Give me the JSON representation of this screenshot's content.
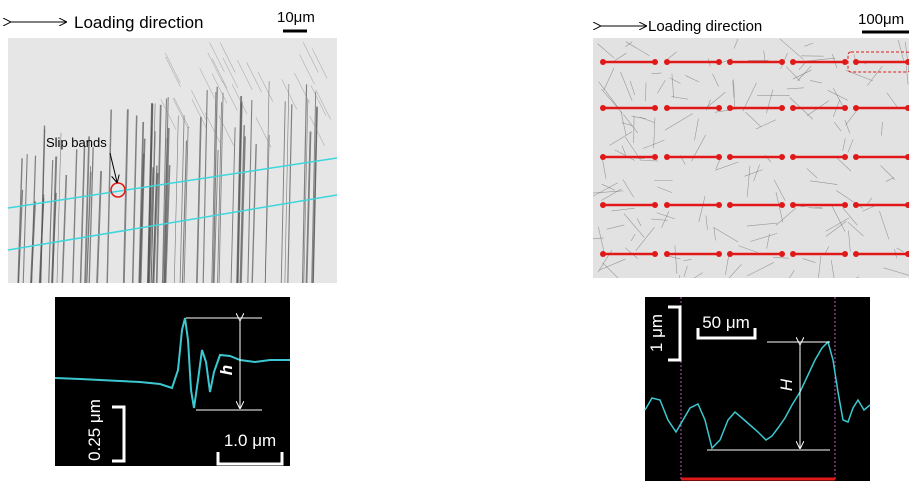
{
  "left_panel": {
    "direction_label": "Loading direction",
    "scale_bar": "10μm",
    "annotation": "Slip bands",
    "profile": {
      "height_label": "h",
      "vertical_scale": "0.25 μm",
      "horizontal_scale": "1.0 μm"
    }
  },
  "right_panel": {
    "direction_label": "Loading direction",
    "scale_bar": "100μm",
    "profile": {
      "height_label": "H",
      "vertical_scale": "1 μm",
      "horizontal_scale": "50 μm"
    }
  }
}
